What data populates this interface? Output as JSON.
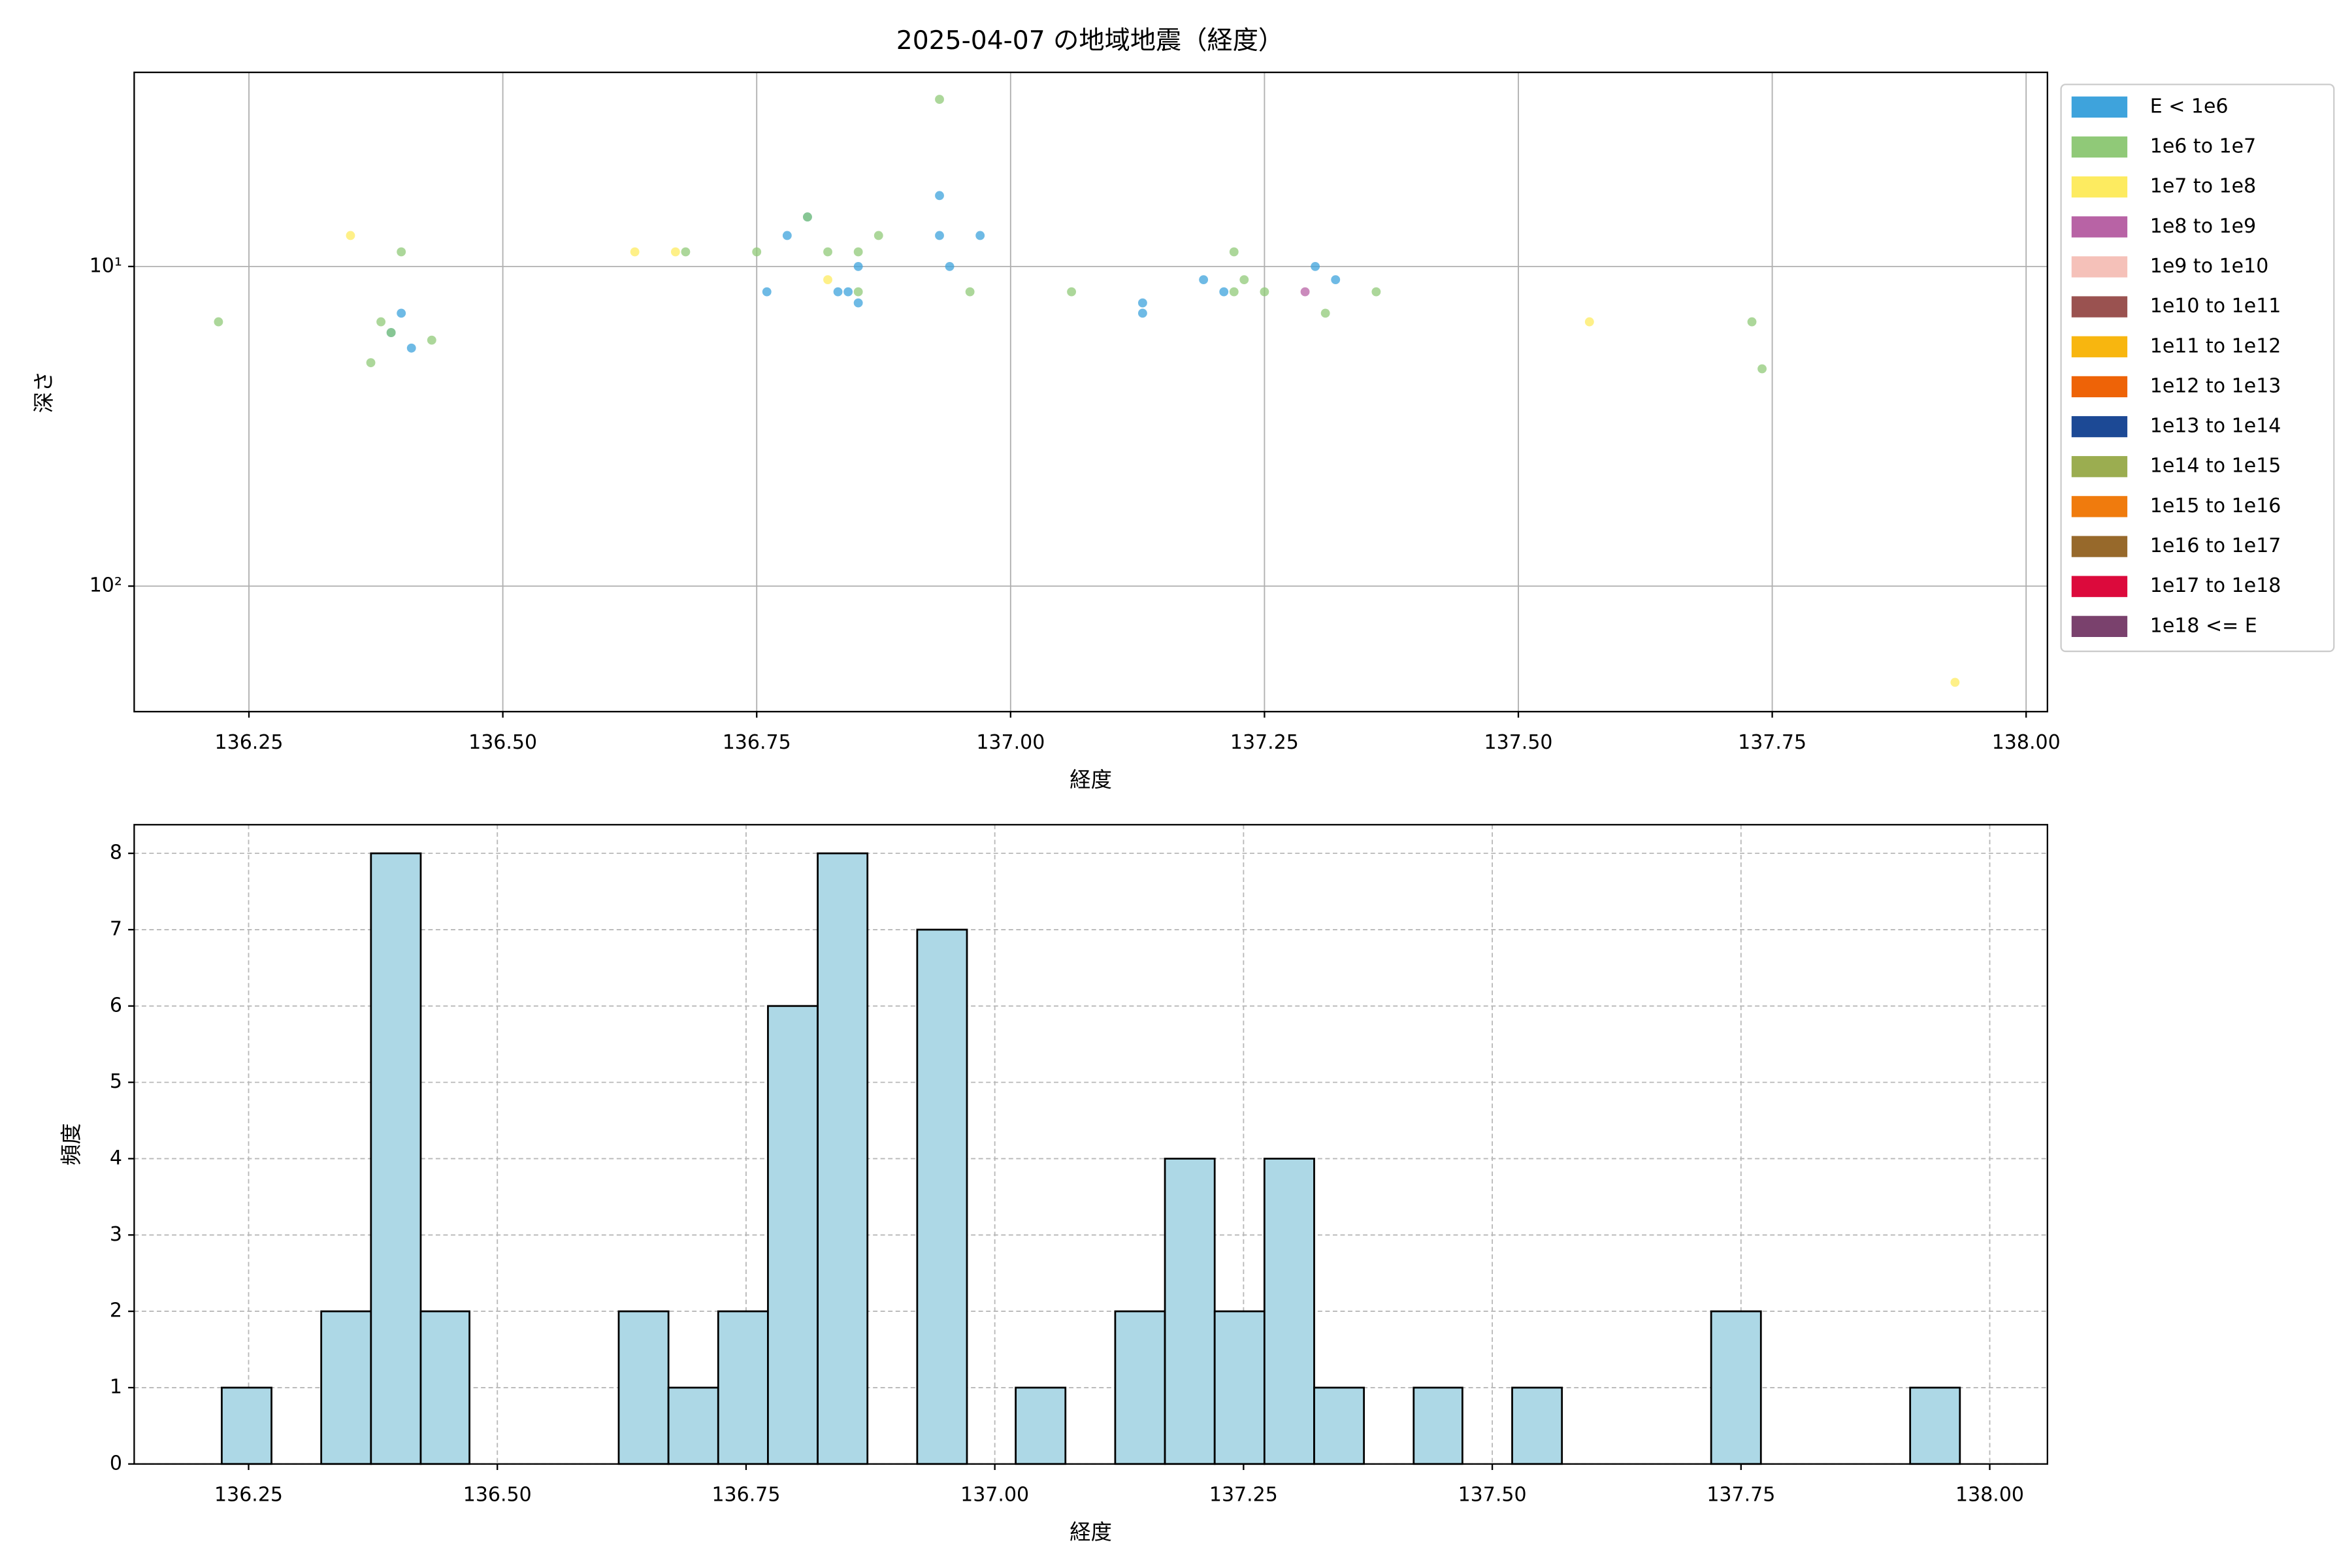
{
  "chart_data": [
    {
      "type": "scatter",
      "title": "2025-04-07 の地域地震（経度）",
      "x_label": "経度",
      "y_label": "深さ",
      "xlim": [
        136.137,
        138.021
      ],
      "xticks": [
        136.25,
        136.5,
        136.75,
        137.0,
        137.25,
        137.5,
        137.75,
        138.0
      ],
      "xtick_labels": [
        "136.25",
        "136.50",
        "136.75",
        "137.00",
        "137.25",
        "137.50",
        "137.75",
        "138.00"
      ],
      "ylim": [
        2.47,
        247
      ],
      "log_y": true,
      "invert_y": true,
      "yticks": [
        {
          "value": 10,
          "label": "10¹"
        },
        {
          "value": 100,
          "label": "10²"
        }
      ],
      "grid": true,
      "legend": "outside right",
      "series": [
        {
          "name": "E < 1e6",
          "color": "#3ea3dc",
          "x": [
            136.39,
            136.4,
            136.41,
            136.76,
            136.78,
            136.8,
            136.83,
            136.84,
            136.85,
            136.85,
            136.93,
            136.93,
            136.94,
            136.97,
            137.13,
            137.13,
            137.19,
            137.21,
            137.3,
            137.32
          ],
          "values": [
            16.1,
            14.0,
            18.0,
            12.0,
            8.0,
            7.0,
            12.0,
            12.0,
            13.0,
            10.0,
            6.0,
            8.0,
            10.0,
            8.0,
            13.0,
            14.0,
            11.0,
            12.0,
            10.0,
            11.0
          ]
        },
        {
          "name": "1e6 to 1e7",
          "color": "#90c978",
          "x": [
            136.22,
            136.38,
            136.4,
            136.37,
            136.39,
            136.43,
            136.68,
            136.75,
            136.8,
            136.82,
            136.85,
            136.87,
            136.85,
            136.93,
            136.96,
            137.06,
            137.22,
            137.23,
            137.22,
            137.25,
            137.31,
            137.36,
            137.73,
            137.74
          ],
          "values": [
            14.9,
            14.9,
            9.0,
            20.0,
            16.1,
            17.0,
            9.0,
            9.0,
            7.0,
            9.0,
            9.0,
            8.0,
            12.0,
            3.0,
            12.0,
            12.0,
            9.0,
            11.0,
            12.0,
            12.0,
            14.0,
            12.0,
            14.9,
            20.9
          ]
        },
        {
          "name": "1e7 to 1e8",
          "color": "#fdeb60",
          "x": [
            136.35,
            136.63,
            136.67,
            136.82,
            137.57,
            137.93
          ],
          "values": [
            8.0,
            9.0,
            9.0,
            11.0,
            14.9,
            200
          ]
        },
        {
          "name": "1e8 to 1e9",
          "color": "#b863a5",
          "x": [
            137.29
          ],
          "values": [
            12.0
          ]
        },
        {
          "name": "1e9 to 1e10",
          "color": "#f5c1b9",
          "x": [],
          "values": []
        },
        {
          "name": "1e10 to 1e11",
          "color": "#9a5250",
          "x": [],
          "values": []
        },
        {
          "name": "1e11 to 1e12",
          "color": "#f8b60f",
          "x": [],
          "values": []
        },
        {
          "name": "1e12 to 1e13",
          "color": "#ee6307",
          "x": [],
          "values": []
        },
        {
          "name": "1e13 to 1e14",
          "color": "#1c4995",
          "x": [],
          "values": []
        },
        {
          "name": "1e14 to 1e15",
          "color": "#9bad50",
          "x": [],
          "values": []
        },
        {
          "name": "1e15 to 1e16",
          "color": "#f07b0d",
          "x": [],
          "values": []
        },
        {
          "name": "1e16 to 1e17",
          "color": "#97692b",
          "x": [],
          "values": []
        },
        {
          "name": "1e17 to 1e18",
          "color": "#dc0a3c",
          "x": [],
          "values": []
        },
        {
          "name": "1e18 <= E",
          "color": "#7a416d",
          "x": [],
          "values": []
        }
      ]
    },
    {
      "type": "histogram",
      "x_label": "経度",
      "y_label": "頻度",
      "color": "#add8e6",
      "edgecolor": "#000000",
      "xlim": [
        136.135,
        138.058
      ],
      "xticks": [
        136.25,
        136.5,
        136.75,
        137.0,
        137.25,
        137.5,
        137.75,
        138.0
      ],
      "xtick_labels": [
        "136.25",
        "136.50",
        "136.75",
        "137.00",
        "137.25",
        "137.50",
        "137.75",
        "138.00"
      ],
      "ylim": [
        0,
        8.375
      ],
      "yticks": [
        0,
        1,
        2,
        3,
        4,
        5,
        6,
        7,
        8
      ],
      "grid": true,
      "grid_style": "dashed",
      "bins": [
        136.223,
        136.273,
        136.323,
        136.373,
        136.423,
        136.472,
        136.522,
        136.572,
        136.622,
        136.672,
        136.722,
        136.772,
        136.822,
        136.872,
        136.922,
        136.972,
        137.021,
        137.071,
        137.121,
        137.171,
        137.221,
        137.271,
        137.321,
        137.371,
        137.421,
        137.47,
        137.52,
        137.57,
        137.62,
        137.67,
        137.72,
        137.77,
        137.82,
        137.87,
        137.92,
        137.97
      ],
      "values": [
        1,
        0,
        2,
        8,
        2,
        0,
        0,
        0,
        2,
        1,
        2,
        6,
        8,
        0,
        7,
        0,
        1,
        0,
        2,
        4,
        2,
        4,
        1,
        0,
        1,
        0,
        1,
        0,
        0,
        0,
        2,
        0,
        0,
        0,
        1
      ]
    }
  ]
}
